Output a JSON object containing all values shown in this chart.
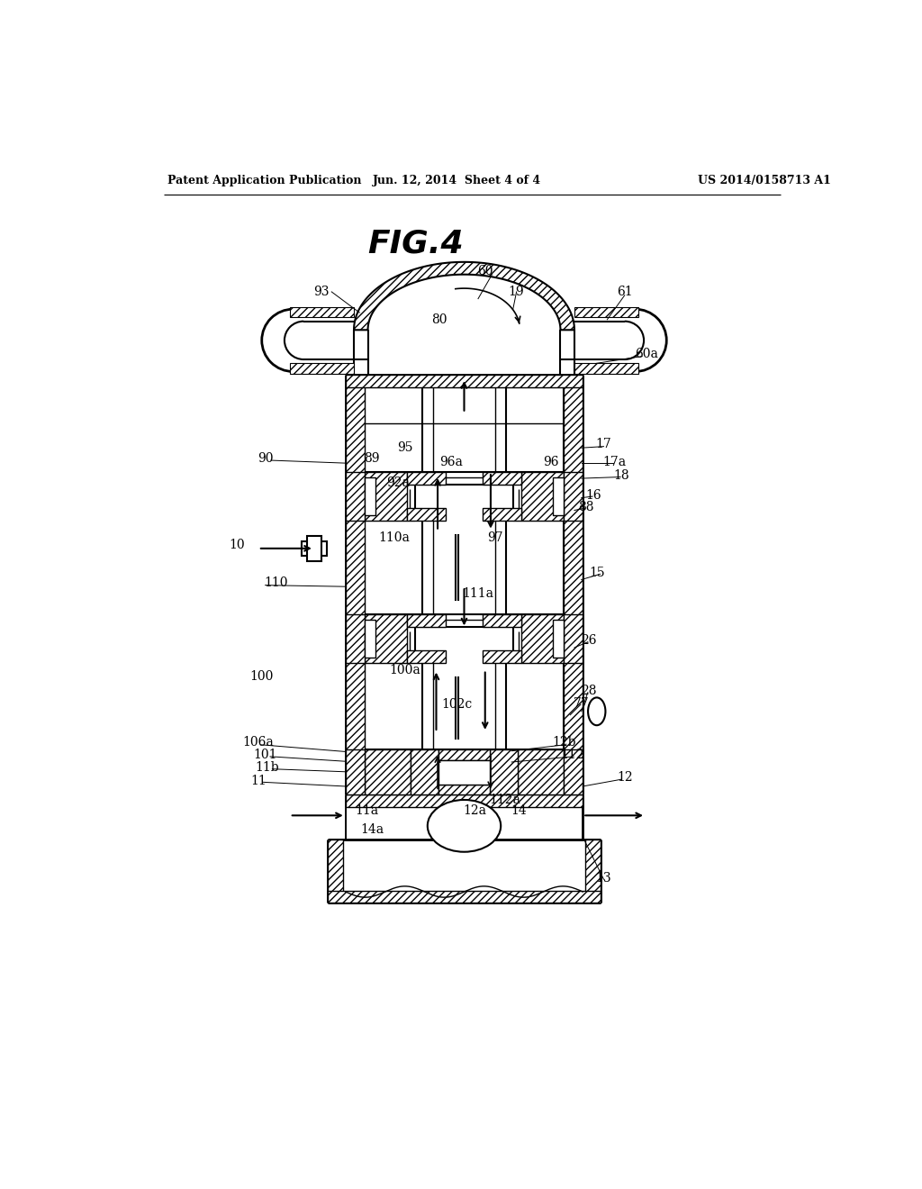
{
  "bg_color": "#ffffff",
  "header_left": "Patent Application Publication",
  "header_mid": "Jun. 12, 2014  Sheet 4 of 4",
  "header_right": "US 2014/0158713 A1",
  "fig_label": "FIG.4"
}
